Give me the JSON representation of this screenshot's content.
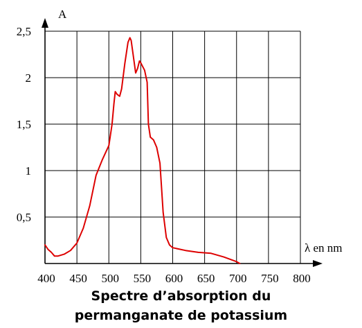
{
  "chart_data": {
    "type": "line",
    "title_lines": [
      "Spectre d’absorption du",
      "permanganate de potassium"
    ],
    "ylabel": "A",
    "xlabel": "λ en nm",
    "xlim": [
      400,
      800
    ],
    "ylim": [
      0,
      2.5
    ],
    "x_ticks": [
      400,
      450,
      500,
      550,
      600,
      650,
      700,
      750,
      800
    ],
    "x_tick_labels": [
      "400",
      "450",
      "500",
      "550",
      "600",
      "650",
      "700",
      "750",
      "800"
    ],
    "y_ticks": [
      0.5,
      1,
      1.5,
      2,
      2.5
    ],
    "y_tick_labels": [
      "0,5",
      "1",
      "1,5",
      "2",
      "2,5"
    ],
    "grid": true,
    "line_color": "#dd0000",
    "series": [
      {
        "x": [
          400,
          405,
          410,
          415,
          420,
          430,
          440,
          450,
          460,
          470,
          480,
          490,
          500,
          505,
          508,
          510,
          513,
          517,
          520,
          525,
          530,
          533,
          535,
          538,
          542,
          545,
          548,
          550,
          553,
          556,
          560,
          562,
          565,
          570,
          575,
          580,
          585,
          590,
          595,
          600,
          620,
          640,
          660,
          680,
          700,
          705
        ],
        "y": [
          0.2,
          0.15,
          0.12,
          0.08,
          0.08,
          0.1,
          0.14,
          0.22,
          0.38,
          0.62,
          0.95,
          1.12,
          1.27,
          1.5,
          1.72,
          1.85,
          1.82,
          1.8,
          1.88,
          2.15,
          2.38,
          2.43,
          2.4,
          2.25,
          2.05,
          2.1,
          2.18,
          2.16,
          2.12,
          2.08,
          1.95,
          1.5,
          1.36,
          1.33,
          1.25,
          1.08,
          0.55,
          0.28,
          0.2,
          0.17,
          0.14,
          0.12,
          0.11,
          0.07,
          0.02,
          0.0
        ]
      }
    ]
  }
}
